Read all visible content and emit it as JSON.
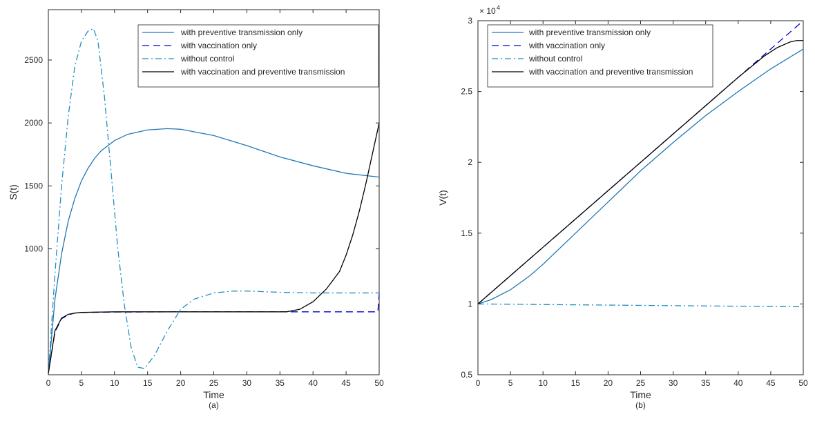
{
  "colors": {
    "light_blue": "#1f77b4",
    "dark_blue": "#0000cc",
    "black": "#000000",
    "axes": "#262626"
  },
  "legend": [
    "with preventive transmission only",
    "with vaccination only",
    "without control",
    "with vaccination and preventive transmission"
  ],
  "chart_data": [
    {
      "type": "line",
      "panel_label": "(a)",
      "xlabel": "Time",
      "ylabel": "S(t)",
      "xlim": [
        0,
        50
      ],
      "ylim": [
        0,
        2900
      ],
      "xticks": [
        0,
        5,
        10,
        15,
        20,
        25,
        30,
        35,
        40,
        45,
        50
      ],
      "yticks": [
        1000,
        1500,
        2000,
        2500
      ],
      "ytick_labels": [
        "1000",
        "1500",
        "2000",
        "2500"
      ],
      "y_exponent": "",
      "grid": false,
      "legend_position": "top-right",
      "series": [
        {
          "name": "with preventive transmission only",
          "style": "solid",
          "color": "#1f77b4",
          "x": [
            0,
            1,
            2,
            3,
            4,
            5,
            6,
            7,
            8,
            10,
            12,
            15,
            18,
            20,
            25,
            30,
            35,
            40,
            45,
            50
          ],
          "y": [
            10,
            600,
            960,
            1220,
            1400,
            1540,
            1640,
            1720,
            1780,
            1860,
            1910,
            1945,
            1955,
            1950,
            1900,
            1820,
            1730,
            1660,
            1600,
            1570
          ]
        },
        {
          "name": "with vaccination only",
          "style": "dashed",
          "color": "#0000cc",
          "x": [
            0,
            1,
            2,
            3,
            4,
            5,
            10,
            20,
            30,
            36,
            40,
            45,
            49.8,
            50
          ],
          "y": [
            10,
            340,
            445,
            475,
            490,
            495,
            498,
            500,
            500,
            500,
            500,
            500,
            500,
            640
          ]
        },
        {
          "name": "without control",
          "style": "dashdot",
          "color": "#1f8fbf",
          "x": [
            0,
            1,
            2,
            3,
            4,
            5,
            6,
            6.8,
            7.5,
            8.5,
            9.5,
            10.5,
            11.5,
            12.5,
            13.5,
            14.5,
            16,
            18,
            20,
            22,
            25,
            28,
            30,
            35,
            40,
            45,
            50
          ],
          "y": [
            10,
            800,
            1500,
            2050,
            2450,
            2650,
            2730,
            2750,
            2650,
            2200,
            1600,
            1000,
            550,
            220,
            60,
            50,
            150,
            350,
            520,
            600,
            650,
            665,
            665,
            655,
            650,
            650,
            650
          ]
        },
        {
          "name": "with vaccination and preventive transmission",
          "style": "solid",
          "color": "#000000",
          "x": [
            0,
            1,
            2,
            3,
            4,
            5,
            10,
            20,
            30,
            36,
            38,
            40,
            42,
            44,
            45,
            46,
            47,
            48,
            49,
            50
          ],
          "y": [
            10,
            350,
            450,
            480,
            490,
            495,
            500,
            500,
            500,
            500,
            520,
            580,
            680,
            820,
            950,
            1110,
            1300,
            1520,
            1760,
            2000
          ]
        }
      ]
    },
    {
      "type": "line",
      "panel_label": "(b)",
      "xlabel": "Time",
      "ylabel": "V(t)",
      "xlim": [
        0,
        50
      ],
      "ylim": [
        0.5,
        3
      ],
      "xticks": [
        0,
        5,
        10,
        15,
        20,
        25,
        30,
        35,
        40,
        45,
        50
      ],
      "yticks": [
        0.5,
        1,
        1.5,
        2,
        2.5,
        3
      ],
      "ytick_labels": [
        "0.5",
        "1",
        "1.5",
        "2",
        "2.5",
        "3"
      ],
      "y_exponent": "× 10",
      "y_exponent_power": "4",
      "grid": false,
      "legend_position": "top-left",
      "series": [
        {
          "name": "with preventive transmission only",
          "style": "solid",
          "color": "#1f77b4",
          "x": [
            0,
            2,
            5,
            8,
            10,
            15,
            20,
            25,
            30,
            35,
            40,
            45,
            50
          ],
          "y": [
            1.0,
            1.03,
            1.1,
            1.2,
            1.28,
            1.5,
            1.72,
            1.94,
            2.14,
            2.33,
            2.5,
            2.66,
            2.8
          ]
        },
        {
          "name": "with vaccination only",
          "style": "dashed",
          "color": "#0000cc",
          "x": [
            0,
            5,
            10,
            15,
            20,
            25,
            30,
            35,
            40,
            45,
            50
          ],
          "y": [
            1.0,
            1.2,
            1.4,
            1.6,
            1.8,
            2.0,
            2.2,
            2.4,
            2.6,
            2.8,
            3.0
          ]
        },
        {
          "name": "without control",
          "style": "dashdot",
          "color": "#1f8fbf",
          "x": [
            0,
            10,
            20,
            30,
            40,
            50
          ],
          "y": [
            1.0,
            0.996,
            0.992,
            0.988,
            0.984,
            0.98
          ]
        },
        {
          "name": "with vaccination and preventive transmission",
          "style": "solid",
          "color": "#000000",
          "x": [
            0,
            5,
            10,
            15,
            20,
            25,
            30,
            35,
            40,
            44,
            46,
            48,
            49,
            50
          ],
          "y": [
            1.0,
            1.2,
            1.4,
            1.6,
            1.8,
            2.0,
            2.2,
            2.4,
            2.6,
            2.75,
            2.81,
            2.85,
            2.86,
            2.86
          ]
        }
      ]
    }
  ]
}
